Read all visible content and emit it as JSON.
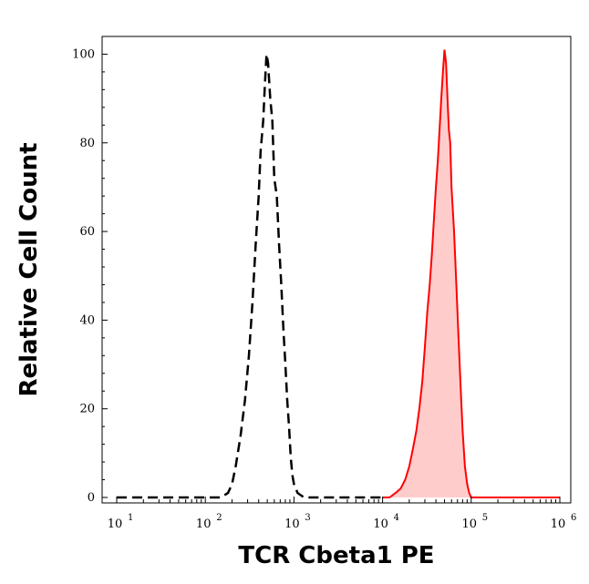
{
  "chart_data": {
    "type": "area",
    "xlabel": "TCR Cbeta1 PE",
    "ylabel": "Relative Cell Count",
    "x_scale": "log",
    "xlim": [
      10,
      1000000
    ],
    "ylim": [
      0,
      104
    ],
    "x_ticks": [
      {
        "base": "10",
        "exp": "1",
        "value": 10
      },
      {
        "base": "10",
        "exp": "2",
        "value": 100
      },
      {
        "base": "10",
        "exp": "3",
        "value": 1000
      },
      {
        "base": "10",
        "exp": "4",
        "value": 10000
      },
      {
        "base": "10",
        "exp": "5",
        "value": 100000
      },
      {
        "base": "10",
        "exp": "6",
        "value": 1000000
      }
    ],
    "y_ticks": [
      "0",
      "20",
      "40",
      "60",
      "80",
      "100"
    ],
    "y_tick_values": [
      0,
      20,
      40,
      60,
      80,
      100
    ],
    "grid": false,
    "series": [
      {
        "style": "dashed-line",
        "color": "#000000",
        "points": [
          [
            10,
            0
          ],
          [
            100,
            0
          ],
          [
            150,
            0
          ],
          [
            180,
            1
          ],
          [
            200,
            3
          ],
          [
            220,
            7
          ],
          [
            250,
            14
          ],
          [
            280,
            22
          ],
          [
            310,
            32
          ],
          [
            340,
            44
          ],
          [
            370,
            57
          ],
          [
            400,
            68
          ],
          [
            420,
            78
          ],
          [
            450,
            85
          ],
          [
            470,
            93
          ],
          [
            490,
            100
          ],
          [
            510,
            98
          ],
          [
            540,
            90
          ],
          [
            570,
            85
          ],
          [
            600,
            72
          ],
          [
            640,
            68
          ],
          [
            680,
            57
          ],
          [
            720,
            48
          ],
          [
            760,
            38
          ],
          [
            800,
            30
          ],
          [
            840,
            22
          ],
          [
            880,
            16
          ],
          [
            920,
            9
          ],
          [
            960,
            5
          ],
          [
            1000,
            3
          ],
          [
            1100,
            1
          ],
          [
            1300,
            0
          ],
          [
            1600,
            0
          ],
          [
            10000,
            0
          ]
        ]
      },
      {
        "style": "filled-area",
        "color": "#ff0000",
        "fill": "#ffcccc",
        "points": [
          [
            10000,
            0
          ],
          [
            12000,
            0
          ],
          [
            14000,
            1
          ],
          [
            16000,
            2
          ],
          [
            18000,
            4
          ],
          [
            20000,
            7
          ],
          [
            22000,
            11
          ],
          [
            24000,
            15
          ],
          [
            26000,
            20
          ],
          [
            28000,
            26
          ],
          [
            30000,
            34
          ],
          [
            32000,
            42
          ],
          [
            34000,
            48
          ],
          [
            36000,
            55
          ],
          [
            38000,
            63
          ],
          [
            40000,
            70
          ],
          [
            42000,
            76
          ],
          [
            44000,
            83
          ],
          [
            46000,
            90
          ],
          [
            48000,
            96
          ],
          [
            50000,
            101
          ],
          [
            52000,
            98
          ],
          [
            54000,
            90
          ],
          [
            56000,
            83
          ],
          [
            58000,
            80
          ],
          [
            60000,
            70
          ],
          [
            64000,
            60
          ],
          [
            68000,
            48
          ],
          [
            72000,
            36
          ],
          [
            76000,
            25
          ],
          [
            80000,
            15
          ],
          [
            85000,
            7
          ],
          [
            90000,
            3
          ],
          [
            95000,
            1
          ],
          [
            100000,
            0
          ],
          [
            1000000,
            0
          ]
        ]
      }
    ]
  }
}
